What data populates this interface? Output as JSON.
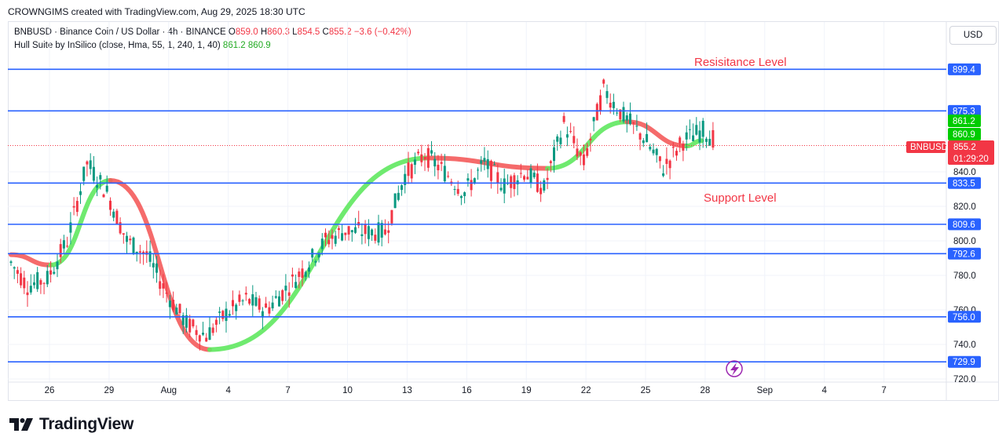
{
  "attribution": "CROWNGIMS created with TradingView.com, Aug 29, 2025 18:30 UTC",
  "legend": {
    "symbol": "BNBUSD · Binance Coin / US Dollar · 4h · BINANCE",
    "o_label": "O",
    "o_value": "859.0",
    "h_label": "H",
    "h_value": "860.3",
    "l_label": "L",
    "l_value": "854.5",
    "c_label": "C",
    "c_value": "855.2",
    "change": "−3.6 (−0.42%)",
    "indicator": "Hull Suite by InSilico (close, Hma, 55, 1, 240, 1, 40)",
    "ind_value1": "861.2",
    "ind_value2": "860.9"
  },
  "currency": "USD",
  "brand": "TradingView",
  "colors": {
    "up": "#089981",
    "down": "#f23645",
    "hull_up": "#5fe85f",
    "hull_down": "#f45b5b",
    "level_line": "#2962ff",
    "annotation": "#f23645",
    "price_tag": "#f23645"
  },
  "chart_data": {
    "type": "candlestick",
    "symbol": "BNBUSD",
    "timeframe": "4h",
    "x_ticks": [
      "26",
      "29",
      "Aug",
      "4",
      "7",
      "10",
      "13",
      "16",
      "19",
      "22",
      "25",
      "28",
      "Sep",
      "4",
      "7"
    ],
    "y_ticks": [
      "720.0",
      "740.0",
      "760.0",
      "780.0",
      "800.0",
      "820.0",
      "840.0"
    ],
    "ylim": [
      720,
      910
    ],
    "levels": [
      899.4,
      875.3,
      833.5,
      809.6,
      792.6,
      756.0,
      729.9
    ],
    "level_labels": [
      "899.4",
      "875.3",
      "833.5",
      "809.6",
      "792.6",
      "756.0",
      "729.9"
    ],
    "indicator_labels": [
      "861.2",
      "860.9"
    ],
    "current_price": 855.2,
    "current_price_label": "855.2",
    "countdown": "01:29:20",
    "symbol_tag": "BNBUSD",
    "annotations": [
      "Resisitance Level",
      "Support Level"
    ],
    "daily_closes": [
      {
        "date": "Jul 25",
        "close": 774
      },
      {
        "date": "Jul 26",
        "close": 778
      },
      {
        "date": "Jul 27",
        "close": 800
      },
      {
        "date": "Jul 28",
        "close": 845
      },
      {
        "date": "Jul 29",
        "close": 828
      },
      {
        "date": "Jul 30",
        "close": 800
      },
      {
        "date": "Jul 31",
        "close": 792
      },
      {
        "date": "Aug 1",
        "close": 770
      },
      {
        "date": "Aug 2",
        "close": 752
      },
      {
        "date": "Aug 3",
        "close": 745
      },
      {
        "date": "Aug 4",
        "close": 758
      },
      {
        "date": "Aug 5",
        "close": 766
      },
      {
        "date": "Aug 6",
        "close": 760
      },
      {
        "date": "Aug 7",
        "close": 772
      },
      {
        "date": "Aug 8",
        "close": 785
      },
      {
        "date": "Aug 9",
        "close": 800
      },
      {
        "date": "Aug 10",
        "close": 806
      },
      {
        "date": "Aug 11",
        "close": 805
      },
      {
        "date": "Aug 12",
        "close": 805
      },
      {
        "date": "Aug 13",
        "close": 838
      },
      {
        "date": "Aug 14",
        "close": 850
      },
      {
        "date": "Aug 15",
        "close": 840
      },
      {
        "date": "Aug 16",
        "close": 828
      },
      {
        "date": "Aug 17",
        "close": 845
      },
      {
        "date": "Aug 18",
        "close": 832
      },
      {
        "date": "Aug 19",
        "close": 840
      },
      {
        "date": "Aug 20",
        "close": 830
      },
      {
        "date": "Aug 21",
        "close": 868
      },
      {
        "date": "Aug 22",
        "close": 845
      },
      {
        "date": "Aug 23",
        "close": 888
      },
      {
        "date": "Aug 24",
        "close": 872
      },
      {
        "date": "Aug 25",
        "close": 860
      },
      {
        "date": "Aug 26",
        "close": 842
      },
      {
        "date": "Aug 27",
        "close": 858
      },
      {
        "date": "Aug 28",
        "close": 864
      },
      {
        "date": "Aug 29",
        "close": 855
      }
    ],
    "hull_turns": [
      {
        "date": "Jul 25",
        "value": 792,
        "trend": "down"
      },
      {
        "date": "Jul 27",
        "value": 786,
        "trend": "up"
      },
      {
        "date": "Jul 30",
        "value": 835,
        "trend": "down"
      },
      {
        "date": "Aug 4",
        "value": 737,
        "trend": "up"
      },
      {
        "date": "Aug 15",
        "value": 848,
        "trend": "down"
      },
      {
        "date": "Aug 21",
        "value": 842,
        "trend": "up"
      },
      {
        "date": "Aug 25",
        "value": 869,
        "trend": "down"
      },
      {
        "date": "Aug 28",
        "value": 855,
        "trend": "up"
      }
    ]
  }
}
